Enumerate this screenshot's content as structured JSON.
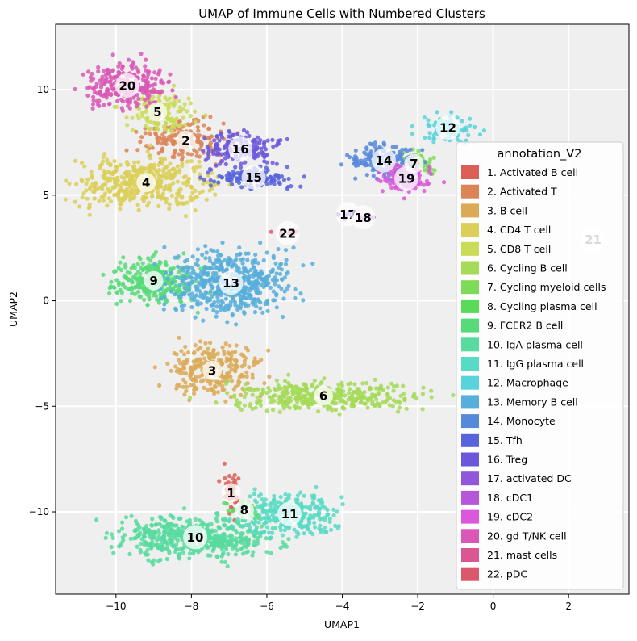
{
  "chart_data": {
    "type": "scatter",
    "title": "UMAP of Immune Cells with Numbered Clusters",
    "xlabel": "UMAP1",
    "ylabel": "UMAP2",
    "xlim": [
      -11.6,
      3.6
    ],
    "ylim": [
      -13.9,
      13.1
    ],
    "xticks": [
      -10,
      -8,
      -6,
      -4,
      -2,
      0,
      2
    ],
    "yticks": [
      -10,
      -5,
      0,
      5,
      10
    ],
    "xtick_labels": [
      "−10",
      "−8",
      "−6",
      "−4",
      "−2",
      "0",
      "2"
    ],
    "ytick_labels": [
      "−10",
      "−5",
      "0",
      "5",
      "10"
    ],
    "grid": true,
    "legend": {
      "title": "annotation_V2",
      "placement": "center-right",
      "entries": [
        {
          "label": "1. Activated B cell",
          "color": "#db5f57"
        },
        {
          "label": "2. Activated T",
          "color": "#db8557"
        },
        {
          "label": "3. B cell",
          "color": "#dbaa57"
        },
        {
          "label": "4. CD4 T cell",
          "color": "#dbcf57"
        },
        {
          "label": "5. CD8 T cell",
          "color": "#c9db57"
        },
        {
          "label": "6. Cycling B cell",
          "color": "#a4db57"
        },
        {
          "label": "7. Cycling myeloid cells",
          "color": "#7edb57"
        },
        {
          "label": "8. Cycling plasma cell",
          "color": "#59db57"
        },
        {
          "label": "9. FCER2 B cell",
          "color": "#57db7a"
        },
        {
          "label": "10. IgA plasma cell",
          "color": "#57db9f"
        },
        {
          "label": "11. IgG plasma cell",
          "color": "#57dbc4"
        },
        {
          "label": "12. Macrophage",
          "color": "#57d3db"
        },
        {
          "label": "13. Memory B cell",
          "color": "#57aedb"
        },
        {
          "label": "14. Monocyte",
          "color": "#5789db"
        },
        {
          "label": "15. Tfh",
          "color": "#5764db"
        },
        {
          "label": "16. Treg",
          "color": "#6c57db"
        },
        {
          "label": "17. activated DC",
          "color": "#9157db"
        },
        {
          "label": "18. cDC1",
          "color": "#b657db"
        },
        {
          "label": "19. cDC2",
          "color": "#db57db"
        },
        {
          "label": "20. gd T/NK cell",
          "color": "#db57b6"
        },
        {
          "label": "21. mast cells",
          "color": "#db5791"
        },
        {
          "label": "22. pDC",
          "color": "#db576c"
        }
      ]
    },
    "clusters": [
      {
        "id": 1,
        "label": "1",
        "cx": -6.95,
        "cy": -9.1
      },
      {
        "id": 2,
        "label": "2",
        "cx": -8.15,
        "cy": 7.6
      },
      {
        "id": 3,
        "label": "3",
        "cx": -7.45,
        "cy": -3.3
      },
      {
        "id": 4,
        "label": "4",
        "cx": -9.2,
        "cy": 5.6
      },
      {
        "id": 5,
        "label": "5",
        "cx": -8.9,
        "cy": 8.95
      },
      {
        "id": 6,
        "label": "6",
        "cx": -4.5,
        "cy": -4.5
      },
      {
        "id": 7,
        "label": "7",
        "cx": -2.1,
        "cy": 6.5
      },
      {
        "id": 8,
        "label": "8",
        "cx": -6.6,
        "cy": -9.9
      },
      {
        "id": 9,
        "label": "9",
        "cx": -9.0,
        "cy": 0.95
      },
      {
        "id": 10,
        "label": "10",
        "cx": -7.9,
        "cy": -11.2
      },
      {
        "id": 11,
        "label": "11",
        "cx": -5.4,
        "cy": -10.1
      },
      {
        "id": 12,
        "label": "12",
        "cx": -1.2,
        "cy": 8.2
      },
      {
        "id": 13,
        "label": "13",
        "cx": -6.95,
        "cy": 0.85
      },
      {
        "id": 14,
        "label": "14",
        "cx": -2.9,
        "cy": 6.65
      },
      {
        "id": 15,
        "label": "15",
        "cx": -6.35,
        "cy": 5.85
      },
      {
        "id": 16,
        "label": "16",
        "cx": -6.7,
        "cy": 7.2
      },
      {
        "id": 17,
        "label": "17",
        "cx": -3.85,
        "cy": 4.1
      },
      {
        "id": 18,
        "label": "18",
        "cx": -3.45,
        "cy": 3.95
      },
      {
        "id": 19,
        "label": "19",
        "cx": -2.3,
        "cy": 5.8
      },
      {
        "id": 20,
        "label": "20",
        "cx": -9.7,
        "cy": 10.2
      },
      {
        "id": 21,
        "label": "21",
        "cx": 2.65,
        "cy": 2.9
      },
      {
        "id": 22,
        "label": "22",
        "cx": -5.45,
        "cy": 3.2
      }
    ]
  }
}
